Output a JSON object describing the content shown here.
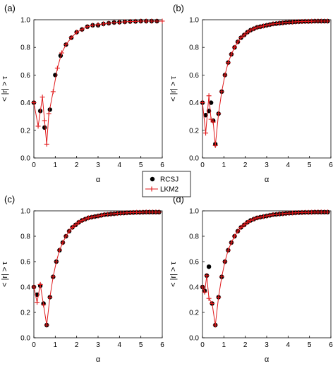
{
  "chart_data": [
    {
      "type": "line",
      "panel_label": "(a)",
      "xlabel": "α",
      "ylabel": "< |r| > τ",
      "xlim": [
        0,
        6
      ],
      "ylim": [
        0,
        1.0
      ],
      "xticks": [
        "0",
        "1",
        "2",
        "3",
        "4",
        "5",
        "6"
      ],
      "yticks": [
        "0.0",
        "0.2",
        "0.4",
        "0.6",
        "0.8",
        "1.0"
      ],
      "series": [
        {
          "name": "RCSJ",
          "marker": "circle",
          "color": "#000000",
          "x": [
            0.0,
            0.3,
            0.5,
            0.75,
            1.0,
            1.25,
            1.5,
            1.75,
            2.0,
            2.25,
            2.5,
            2.75,
            3.0,
            3.25,
            3.5,
            3.75,
            4.0,
            4.25,
            4.5,
            4.75,
            5.0,
            5.25,
            5.5,
            5.75
          ],
          "y": [
            0.4,
            0.34,
            0.22,
            0.35,
            0.6,
            0.74,
            0.82,
            0.87,
            0.91,
            0.93,
            0.95,
            0.96,
            0.96,
            0.97,
            0.975,
            0.98,
            0.982,
            0.985,
            0.987,
            0.988,
            0.99,
            0.99,
            0.99,
            0.99
          ]
        },
        {
          "name": "LKM2",
          "marker": "plus-line",
          "color": "#e0191b",
          "x": [
            0.0,
            0.2,
            0.4,
            0.5,
            0.6,
            0.7,
            0.9,
            1.1,
            1.3,
            1.5,
            1.75,
            2.0,
            2.25,
            2.5,
            2.75,
            3.0,
            3.25,
            3.5,
            3.75,
            4.0,
            4.25,
            4.5,
            4.75,
            5.0,
            5.25,
            5.5,
            5.75,
            6.0
          ],
          "y": [
            0.4,
            0.23,
            0.44,
            0.27,
            0.1,
            0.32,
            0.48,
            0.65,
            0.76,
            0.82,
            0.87,
            0.91,
            0.93,
            0.95,
            0.96,
            0.965,
            0.97,
            0.975,
            0.98,
            0.982,
            0.985,
            0.987,
            0.988,
            0.99,
            0.99,
            0.99,
            0.99,
            0.99
          ]
        }
      ]
    },
    {
      "type": "line",
      "panel_label": "(b)",
      "xlabel": "α",
      "ylabel": "< |r| > τ",
      "xlim": [
        0,
        6
      ],
      "ylim": [
        0,
        1.0
      ],
      "xticks": [
        "0",
        "1",
        "2",
        "3",
        "4",
        "5",
        "6"
      ],
      "yticks": [
        "0.0",
        "0.2",
        "0.4",
        "0.6",
        "0.8",
        "1.0"
      ],
      "series": [
        {
          "name": "RCSJ",
          "marker": "circle",
          "color": "#000000",
          "x": [
            0.0,
            0.15,
            0.3,
            0.4,
            0.5,
            0.6,
            0.75,
            0.9,
            1.05,
            1.2,
            1.35,
            1.5,
            1.65,
            1.8,
            1.95,
            2.1,
            2.25,
            2.4,
            2.55,
            2.7,
            2.85,
            3.0,
            3.15,
            3.3,
            3.45,
            3.6,
            3.75,
            3.9,
            4.05,
            4.2,
            4.35,
            4.5,
            4.65,
            4.8,
            4.95,
            5.1,
            5.25,
            5.4,
            5.55,
            5.7,
            5.85
          ],
          "y": [
            0.4,
            0.31,
            0.34,
            0.4,
            0.27,
            0.1,
            0.32,
            0.48,
            0.6,
            0.69,
            0.75,
            0.8,
            0.84,
            0.87,
            0.89,
            0.91,
            0.925,
            0.935,
            0.945,
            0.95,
            0.955,
            0.96,
            0.965,
            0.97,
            0.972,
            0.975,
            0.977,
            0.98,
            0.982,
            0.983,
            0.985,
            0.986,
            0.987,
            0.988,
            0.988,
            0.989,
            0.99,
            0.99,
            0.99,
            0.99,
            0.99
          ]
        },
        {
          "name": "LKM2",
          "marker": "plus-line",
          "color": "#e0191b",
          "x": [
            0.0,
            0.15,
            0.3,
            0.4,
            0.5,
            0.6,
            0.75,
            0.9,
            1.05,
            1.2,
            1.35,
            1.5,
            1.65,
            1.8,
            1.95,
            2.1,
            2.25,
            2.4,
            2.55,
            2.7,
            2.85,
            3.0,
            3.15,
            3.3,
            3.45,
            3.6,
            3.75,
            3.9,
            4.05,
            4.2,
            4.35,
            4.5,
            4.65,
            4.8,
            4.95,
            5.1,
            5.25,
            5.4,
            5.55,
            5.7,
            5.85
          ],
          "y": [
            0.4,
            0.18,
            0.45,
            0.28,
            0.26,
            0.09,
            0.32,
            0.48,
            0.6,
            0.69,
            0.75,
            0.8,
            0.84,
            0.87,
            0.89,
            0.91,
            0.925,
            0.935,
            0.945,
            0.95,
            0.955,
            0.96,
            0.965,
            0.97,
            0.972,
            0.975,
            0.977,
            0.98,
            0.982,
            0.983,
            0.985,
            0.986,
            0.987,
            0.988,
            0.988,
            0.989,
            0.99,
            0.99,
            0.99,
            0.99,
            0.99
          ]
        }
      ]
    },
    {
      "type": "line",
      "panel_label": "(c)",
      "xlabel": "α",
      "ylabel": "< |r| > τ",
      "xlim": [
        0,
        6
      ],
      "ylim": [
        0,
        1.0
      ],
      "xticks": [
        "0",
        "1",
        "2",
        "3",
        "4",
        "5",
        "6"
      ],
      "yticks": [
        "0.0",
        "0.2",
        "0.4",
        "0.6",
        "0.8",
        "1.0"
      ],
      "series": [
        {
          "name": "RCSJ",
          "marker": "circle",
          "color": "#000000",
          "x": [
            0.0,
            0.15,
            0.3,
            0.45,
            0.6,
            0.75,
            0.9,
            1.05,
            1.2,
            1.35,
            1.5,
            1.65,
            1.8,
            1.95,
            2.1,
            2.25,
            2.4,
            2.55,
            2.7,
            2.85,
            3.0,
            3.15,
            3.3,
            3.45,
            3.6,
            3.75,
            3.9,
            4.05,
            4.2,
            4.35,
            4.5,
            4.65,
            4.8,
            4.95,
            5.1,
            5.25,
            5.4,
            5.55,
            5.7,
            5.85
          ],
          "y": [
            0.4,
            0.34,
            0.41,
            0.27,
            0.1,
            0.32,
            0.48,
            0.6,
            0.69,
            0.75,
            0.8,
            0.84,
            0.87,
            0.89,
            0.91,
            0.925,
            0.935,
            0.945,
            0.95,
            0.955,
            0.96,
            0.965,
            0.97,
            0.972,
            0.975,
            0.977,
            0.98,
            0.982,
            0.983,
            0.985,
            0.986,
            0.987,
            0.988,
            0.988,
            0.989,
            0.99,
            0.99,
            0.99,
            0.99,
            0.99
          ]
        },
        {
          "name": "LKM2",
          "marker": "plus-line",
          "color": "#e0191b",
          "x": [
            0.0,
            0.15,
            0.3,
            0.45,
            0.6,
            0.75,
            0.9,
            1.05,
            1.2,
            1.35,
            1.5,
            1.65,
            1.8,
            1.95,
            2.1,
            2.25,
            2.4,
            2.55,
            2.7,
            2.85,
            3.0,
            3.15,
            3.3,
            3.45,
            3.6,
            3.75,
            3.9,
            4.05,
            4.2,
            4.35,
            4.5,
            4.65,
            4.8,
            4.95,
            5.1,
            5.25,
            5.4,
            5.55,
            5.7,
            5.85
          ],
          "y": [
            0.4,
            0.28,
            0.42,
            0.26,
            0.1,
            0.32,
            0.48,
            0.6,
            0.69,
            0.75,
            0.8,
            0.84,
            0.87,
            0.89,
            0.91,
            0.925,
            0.935,
            0.945,
            0.95,
            0.955,
            0.96,
            0.965,
            0.97,
            0.972,
            0.975,
            0.977,
            0.98,
            0.982,
            0.983,
            0.985,
            0.986,
            0.987,
            0.988,
            0.988,
            0.989,
            0.99,
            0.99,
            0.99,
            0.99,
            0.99
          ]
        }
      ]
    },
    {
      "type": "line",
      "panel_label": "(d)",
      "xlabel": "α",
      "ylabel": "< |r| > τ",
      "xlim": [
        0,
        6
      ],
      "ylim": [
        0,
        1.0
      ],
      "xticks": [
        "0",
        "1",
        "2",
        "3",
        "4",
        "5",
        "6"
      ],
      "yticks": [
        "0.0",
        "0.2",
        "0.4",
        "0.6",
        "0.8",
        "1.0"
      ],
      "series": [
        {
          "name": "RCSJ",
          "marker": "circle",
          "color": "#000000",
          "x": [
            0.0,
            0.1,
            0.2,
            0.3,
            0.45,
            0.6,
            0.75,
            0.9,
            1.05,
            1.2,
            1.35,
            1.5,
            1.65,
            1.8,
            1.95,
            2.1,
            2.25,
            2.4,
            2.55,
            2.7,
            2.85,
            3.0,
            3.15,
            3.3,
            3.45,
            3.6,
            3.75,
            3.9,
            4.05,
            4.2,
            4.35,
            4.5,
            4.65,
            4.8,
            4.95,
            5.1,
            5.25,
            5.4,
            5.55,
            5.7,
            5.85
          ],
          "y": [
            0.4,
            0.37,
            0.49,
            0.56,
            0.27,
            0.1,
            0.32,
            0.48,
            0.6,
            0.69,
            0.75,
            0.8,
            0.84,
            0.87,
            0.89,
            0.91,
            0.925,
            0.935,
            0.945,
            0.95,
            0.955,
            0.96,
            0.965,
            0.97,
            0.972,
            0.975,
            0.977,
            0.98,
            0.982,
            0.983,
            0.985,
            0.986,
            0.987,
            0.988,
            0.988,
            0.989,
            0.99,
            0.99,
            0.99,
            0.99,
            0.99
          ]
        },
        {
          "name": "LKM2",
          "marker": "plus-line",
          "color": "#e0191b",
          "x": [
            0.0,
            0.1,
            0.2,
            0.3,
            0.45,
            0.6,
            0.75,
            0.9,
            1.05,
            1.2,
            1.35,
            1.5,
            1.65,
            1.8,
            1.95,
            2.1,
            2.25,
            2.4,
            2.55,
            2.7,
            2.85,
            3.0,
            3.15,
            3.3,
            3.45,
            3.6,
            3.75,
            3.9,
            4.05,
            4.2,
            4.35,
            4.5,
            4.65,
            4.8,
            4.95,
            5.1,
            5.25,
            5.4,
            5.55,
            5.7,
            5.85
          ],
          "y": [
            0.4,
            0.36,
            0.49,
            0.31,
            0.27,
            0.1,
            0.32,
            0.48,
            0.6,
            0.69,
            0.75,
            0.8,
            0.84,
            0.87,
            0.89,
            0.91,
            0.925,
            0.935,
            0.945,
            0.95,
            0.955,
            0.96,
            0.965,
            0.97,
            0.972,
            0.975,
            0.977,
            0.98,
            0.982,
            0.983,
            0.985,
            0.986,
            0.987,
            0.988,
            0.988,
            0.989,
            0.99,
            0.99,
            0.99,
            0.99,
            0.99
          ]
        }
      ]
    }
  ],
  "legend": {
    "entries": [
      {
        "label": "RCSJ",
        "marker": "circle",
        "color": "#000000"
      },
      {
        "label": "LKM2",
        "marker": "plus-line",
        "color": "#e0191b"
      }
    ]
  }
}
